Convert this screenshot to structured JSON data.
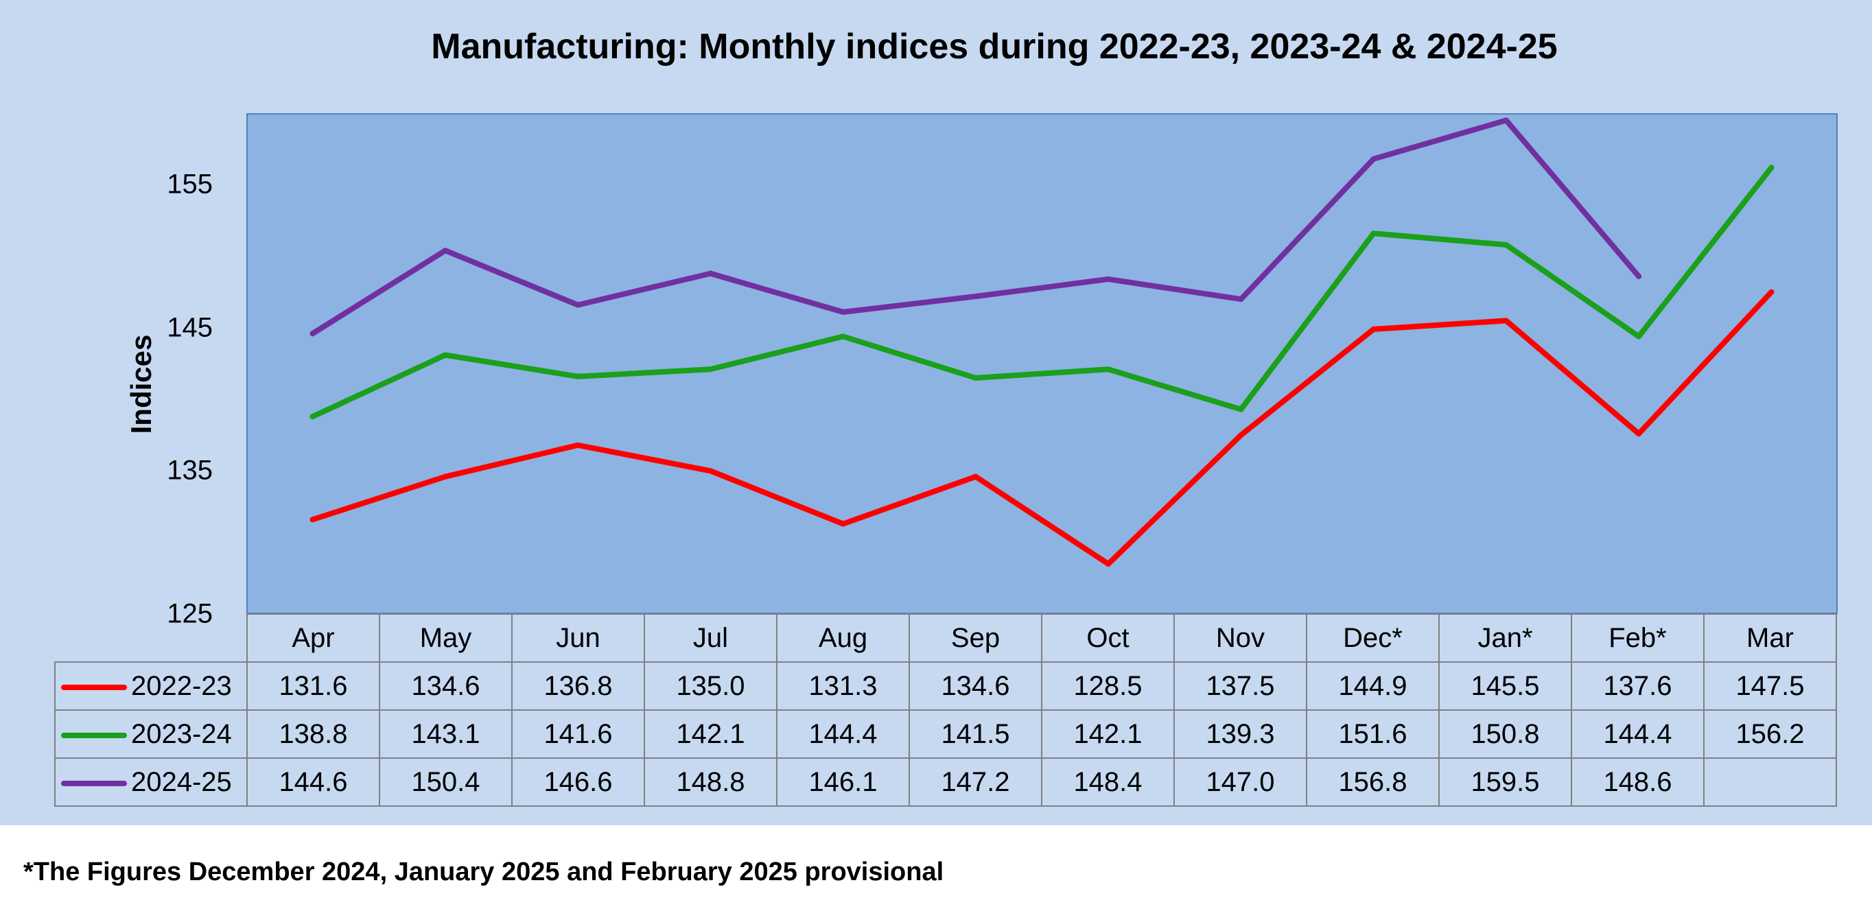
{
  "chart_data": {
    "type": "line",
    "title": "Manufacturing: Monthly indices during 2022-23, 2023-24 & 2024-25",
    "ylabel": "Indices",
    "xlabel": "",
    "ylim": [
      125,
      160
    ],
    "yticks": [
      125,
      135,
      145,
      155
    ],
    "categories": [
      "Apr",
      "May",
      "Jun",
      "Jul",
      "Aug",
      "Sep",
      "Oct",
      "Nov",
      "Dec*",
      "Jan*",
      "Feb*",
      "Mar"
    ],
    "series": [
      {
        "name": "2022-23",
        "color": "#ff0000",
        "values": [
          131.6,
          134.6,
          136.8,
          135.0,
          131.3,
          134.6,
          128.5,
          137.5,
          144.9,
          145.5,
          137.6,
          147.5
        ]
      },
      {
        "name": "2023-24",
        "color": "#1aa01a",
        "values": [
          138.8,
          143.1,
          141.6,
          142.1,
          144.4,
          141.5,
          142.1,
          139.3,
          151.6,
          150.8,
          144.4,
          156.2
        ]
      },
      {
        "name": "2024-25",
        "color": "#7030a0",
        "values": [
          144.6,
          150.4,
          146.6,
          148.8,
          146.1,
          147.2,
          148.4,
          147.0,
          156.8,
          159.5,
          148.6,
          null
        ]
      }
    ],
    "table": {
      "rows": [
        [
          "131.6",
          "134.6",
          "136.8",
          "135.0",
          "131.3",
          "134.6",
          "128.5",
          "137.5",
          "144.9",
          "145.5",
          "137.6",
          "147.5"
        ],
        [
          "138.8",
          "143.1",
          "141.6",
          "142.1",
          "144.4",
          "141.5",
          "142.1",
          "139.3",
          "151.6",
          "150.8",
          "144.4",
          "156.2"
        ],
        [
          "144.6",
          "150.4",
          "146.6",
          "148.8",
          "146.1",
          "147.2",
          "148.4",
          "147.0",
          "156.8",
          "159.5",
          "148.6",
          ""
        ]
      ]
    },
    "grid": false,
    "legend": "table"
  },
  "footnote": "*The Figures December 2024, January 2025 and February 2025 provisional",
  "colors": {
    "chart_background": "#c6d9f1",
    "plot_background": "#8db3e2"
  }
}
